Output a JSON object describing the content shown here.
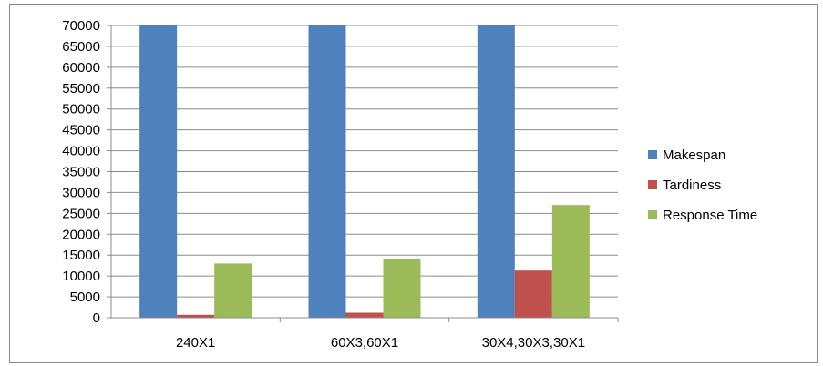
{
  "chart_data": {
    "type": "bar",
    "title": "",
    "xlabel": "",
    "ylabel": "",
    "categories": [
      "240X1",
      "60X3,60X1",
      "30X4,30X3,30X1"
    ],
    "series": [
      {
        "name": "Makespan",
        "color": "#4f81bd",
        "values": [
          70000,
          70000,
          70000
        ]
      },
      {
        "name": "Tardiness",
        "color": "#c0504d",
        "values": [
          700,
          1200,
          11300
        ]
      },
      {
        "name": "Response Time",
        "color": "#9bbb59",
        "values": [
          13000,
          14000,
          27000
        ]
      }
    ],
    "ylim": [
      0,
      70000
    ],
    "yticks": [
      0,
      5000,
      10000,
      15000,
      20000,
      25000,
      30000,
      35000,
      40000,
      45000,
      50000,
      55000,
      60000,
      65000,
      70000
    ],
    "grid": true,
    "legend_position": "right"
  }
}
